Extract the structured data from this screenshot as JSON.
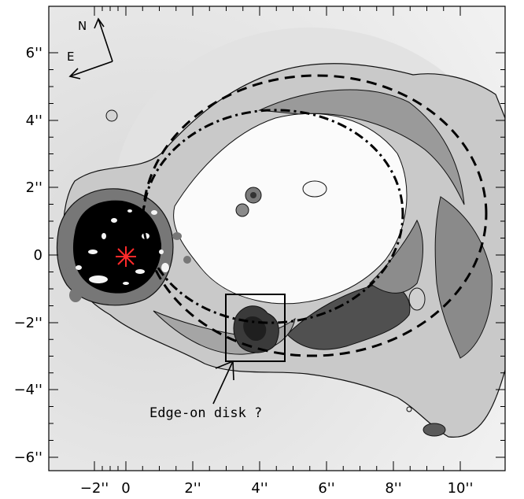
{
  "x_tick_labels": [
    "−2''",
    "0",
    "2''",
    "4''",
    "6''",
    "8''",
    "10''"
  ],
  "y_tick_labels": [
    "6''",
    "4''",
    "2''",
    "0",
    "−2''",
    "−4''",
    "−6''"
  ],
  "compass": {
    "north_label": "N",
    "east_label": "E"
  },
  "annotation": {
    "label": "Edge-on disk ?"
  },
  "colors": {
    "frame": "#000000",
    "star_marker": "#ff2a2a",
    "background": "#e9e9e9"
  }
}
